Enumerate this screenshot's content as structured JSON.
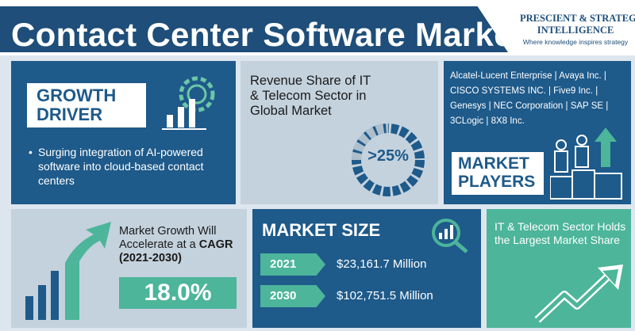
{
  "header": {
    "title": "Contact Center Software Market",
    "brand_line1": "PRESCIENT & STRATEGIC",
    "brand_line2": "INTELLIGENCE",
    "brand_tagline": "Where knowledge inspires strategy"
  },
  "growth": {
    "title": "GROWTH\nDRIVER",
    "bullet": "Surging integration of AI-powered software into cloud-based contact centers",
    "icon": "gear-chart-icon"
  },
  "revenue": {
    "text": "Revenue Share of IT & Telecom Sector in Global Market",
    "value": ">25%"
  },
  "players": {
    "list": "Alcatel-Lucent Enterprise | Avaya Inc. | CISCO SYSTEMS INC. | Five9 Inc. | Genesys | NEC Corporation | SAP SE | 3CLogic | 8X8 Inc.",
    "title": "MARKET\nPLAYERS",
    "icon": "podium-people-icon"
  },
  "cagr": {
    "text_line": "Market Growth Will Accelerate at a",
    "text_bold": "CAGR (2021-2030)",
    "value": "18.0%"
  },
  "market_size": {
    "title": "MARKET SIZE",
    "rows": [
      {
        "year": "2021",
        "value": "$23,161.7 Million"
      },
      {
        "year": "2030",
        "value": "$102,751.5 Million"
      }
    ],
    "icon": "magnifier-chart-icon"
  },
  "it_sector": {
    "text": "IT & Telecom Sector Holds the Largest Market Share",
    "icon": "trend-arrow-icon"
  },
  "colors": {
    "navy": "#1e5a8a",
    "green": "#4cb59a",
    "light": "#c4d2dd"
  }
}
